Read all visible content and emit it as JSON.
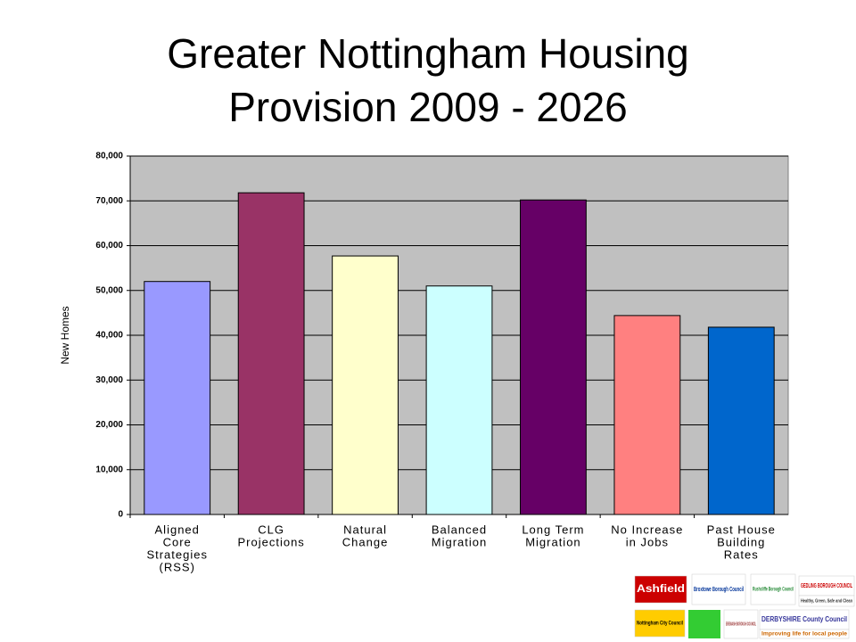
{
  "chart_data": {
    "type": "bar",
    "title": [
      "Greater Nottingham Housing",
      "Provision 2009 - 2026"
    ],
    "y_label": "New Homes",
    "categories": [
      [
        "Aligned",
        "Core",
        "Strategies",
        "(RSS)"
      ],
      [
        "CLG",
        "Projections"
      ],
      [
        "Natural",
        "Change"
      ],
      [
        "Balanced",
        "Migration"
      ],
      [
        "Long Term",
        "Migration"
      ],
      [
        "No Increase",
        "in Jobs"
      ],
      [
        "Past House",
        "Building",
        "Rates"
      ]
    ],
    "values": [
      52000,
      71800,
      57700,
      51000,
      70200,
      44400,
      41800
    ],
    "colors": [
      "#9999ff",
      "#993366",
      "#ffffcc",
      "#ccffff",
      "#660066",
      "#ff8080",
      "#0066cc"
    ],
    "ylim": [
      0,
      80000
    ],
    "yticks": [
      0,
      {
        "value": 10000,
        "label": "10,000"
      },
      {
        "value": 20000,
        "label": "20,000"
      },
      {
        "value": 30000,
        "label": "30,000"
      },
      {
        "value": 40000,
        "label": "40,000"
      },
      {
        "value": 50000,
        "label": "50,000"
      },
      {
        "value": 60000,
        "label": "60,000"
      },
      {
        "value": 70000,
        "label": "70,000"
      },
      {
        "value": 80000,
        "label": "80,000"
      }
    ],
    "grid": true
  },
  "logos": [
    "Ashfield",
    "Broxtowe Borough Council",
    "Rushcliffe Borough Council",
    "GEDLING BOROUGH COUNCIL",
    "Healthy, Green, Safe and Clean",
    "Nottingham City Council",
    "EREWASH BOROUGH COUNCIL",
    "DERBYSHIRE County Council",
    "Improving life for local people"
  ]
}
